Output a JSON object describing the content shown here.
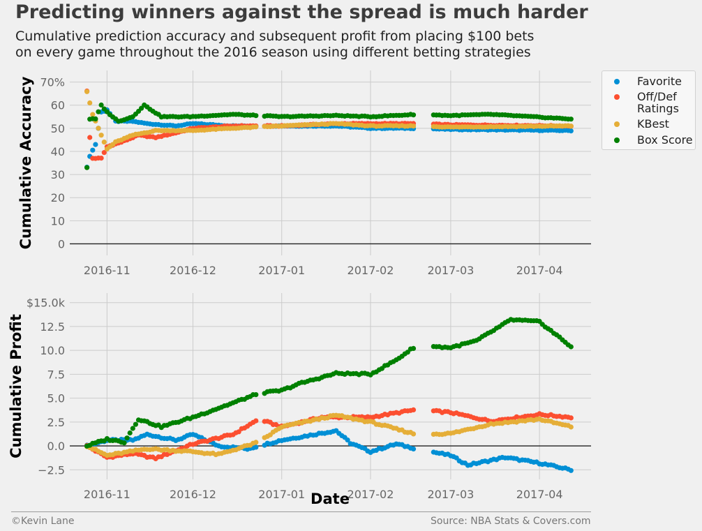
{
  "title": "Predicting winners against the spread is much harder",
  "subtitle_line1": "Cumulative prediction accuracy and subsequent profit from placing $100 bets",
  "subtitle_line2": "on every game throughout the 2016 season using different betting strategies",
  "footer": {
    "credit": "©Kevin Lane",
    "source": "Source: NBA Stats & Covers.com"
  },
  "colors": {
    "Favorite": "#008fd5",
    "Off/Def Ratings": "#fc4f30",
    "KBest": "#e5ae38",
    "Box Score": "#008000",
    "background": "#f0f0f0",
    "grid": "#cbcbcb"
  },
  "legend": [
    {
      "label": "Favorite",
      "color": "#008fd5"
    },
    {
      "label": "Off/Def\nRatings",
      "color": "#fc4f30"
    },
    {
      "label": "KBest",
      "color": "#e5ae38"
    },
    {
      "label": "Box Score",
      "color": "#008000"
    }
  ],
  "chart_data": [
    {
      "type": "scatter",
      "ylabel": "Cumulative Accuracy",
      "xlabel": "",
      "x_range": [
        "2016-10-19",
        "2017-04-19"
      ],
      "ylim": [
        -5,
        75
      ],
      "yticks": [
        0,
        10,
        20,
        30,
        40,
        50,
        60,
        70
      ],
      "ytick_labels": [
        "0",
        "10",
        "20",
        "30",
        "40",
        "50",
        "60",
        "70%"
      ],
      "xticks": [
        "2016-11-01",
        "2016-12-01",
        "2017-01-01",
        "2017-02-01",
        "2017-03-01",
        "2017-04-01"
      ],
      "xtick_labels": [
        "2016-11",
        "2016-12",
        "2017-01",
        "2017-02",
        "2017-03",
        "2017-04"
      ],
      "gaps": [
        [
          "2017-02-17",
          "2017-02-22"
        ],
        [
          "2016-12-24",
          "2016-12-25"
        ]
      ],
      "grid": true,
      "season_start": "2016-10-25",
      "season_end": "2017-04-12",
      "series": [
        {
          "name": "Favorite",
          "anchors": [
            [
              "2016-10-25",
              33
            ],
            [
              "2016-10-26",
              38
            ],
            [
              "2016-10-28",
              43
            ],
            [
              "2016-10-30",
              57
            ],
            [
              "2016-11-01",
              58
            ],
            [
              "2016-11-04",
              53
            ],
            [
              "2016-11-10",
              53
            ],
            [
              "2016-11-15",
              52
            ],
            [
              "2016-11-25",
              51
            ],
            [
              "2016-12-01",
              52
            ],
            [
              "2016-12-15",
              51
            ],
            [
              "2017-01-01",
              51
            ],
            [
              "2017-01-20",
              51
            ],
            [
              "2017-02-01",
              50
            ],
            [
              "2017-02-17",
              50
            ],
            [
              "2017-03-01",
              49.5
            ],
            [
              "2017-04-12",
              49
            ]
          ]
        },
        {
          "name": "Off/Def Ratings",
          "anchors": [
            [
              "2016-10-25",
              66
            ],
            [
              "2016-10-26",
              46
            ],
            [
              "2016-10-27",
              37
            ],
            [
              "2016-10-30",
              37
            ],
            [
              "2016-11-01",
              42
            ],
            [
              "2016-11-06",
              44
            ],
            [
              "2016-11-12",
              47
            ],
            [
              "2016-11-18",
              46
            ],
            [
              "2016-11-25",
              48
            ],
            [
              "2016-12-01",
              50
            ],
            [
              "2016-12-15",
              51
            ],
            [
              "2017-01-01",
              51
            ],
            [
              "2017-01-20",
              52
            ],
            [
              "2017-02-01",
              52
            ],
            [
              "2017-02-17",
              52
            ],
            [
              "2017-03-01",
              51.5
            ],
            [
              "2017-04-12",
              51
            ]
          ]
        },
        {
          "name": "KBest",
          "anchors": [
            [
              "2016-10-25",
              66
            ],
            [
              "2016-10-27",
              56
            ],
            [
              "2016-10-29",
              50
            ],
            [
              "2016-11-01",
              41
            ],
            [
              "2016-11-04",
              44
            ],
            [
              "2016-11-10",
              47
            ],
            [
              "2016-11-18",
              49
            ],
            [
              "2016-11-25",
              49
            ],
            [
              "2016-12-01",
              49
            ],
            [
              "2016-12-15",
              50
            ],
            [
              "2017-01-01",
              51
            ],
            [
              "2017-01-20",
              52
            ],
            [
              "2017-02-01",
              51
            ],
            [
              "2017-02-17",
              51
            ],
            [
              "2017-03-01",
              50.5
            ],
            [
              "2017-04-12",
              51
            ]
          ]
        },
        {
          "name": "Box Score",
          "anchors": [
            [
              "2016-10-25",
              33
            ],
            [
              "2016-10-26",
              54
            ],
            [
              "2016-10-28",
              54
            ],
            [
              "2016-10-30",
              60
            ],
            [
              "2016-11-01",
              57
            ],
            [
              "2016-11-05",
              53
            ],
            [
              "2016-11-10",
              55
            ],
            [
              "2016-11-14",
              60
            ],
            [
              "2016-11-20",
              55
            ],
            [
              "2016-11-30",
              55
            ],
            [
              "2016-12-15",
              56
            ],
            [
              "2017-01-01",
              55
            ],
            [
              "2017-01-20",
              55.5
            ],
            [
              "2017-02-01",
              55
            ],
            [
              "2017-02-17",
              56
            ],
            [
              "2017-03-01",
              55.5
            ],
            [
              "2017-03-15",
              56
            ],
            [
              "2017-04-12",
              54
            ]
          ]
        }
      ]
    },
    {
      "type": "scatter",
      "ylabel": "Cumulative Profit",
      "xlabel": "Date",
      "x_range": [
        "2016-10-19",
        "2017-04-19"
      ],
      "ylim": [
        -3.5,
        16
      ],
      "yticks": [
        -2.5,
        0,
        2.5,
        5,
        7.5,
        10,
        12.5,
        15
      ],
      "ytick_labels": [
        "−2.5",
        "0.0",
        "2.5",
        "5.0",
        "7.5",
        "10.0",
        "12.5",
        "$15.0k"
      ],
      "xticks": [
        "2016-11-01",
        "2016-12-01",
        "2017-01-01",
        "2017-02-01",
        "2017-03-01",
        "2017-04-01"
      ],
      "xtick_labels": [
        "2016-11",
        "2016-12",
        "2017-01",
        "2017-02",
        "2017-03",
        "2017-04"
      ],
      "gaps": [
        [
          "2017-02-17",
          "2017-02-22"
        ],
        [
          "2016-12-24",
          "2016-12-25"
        ]
      ],
      "grid": true,
      "season_start": "2016-10-25",
      "season_end": "2017-04-12",
      "series": [
        {
          "name": "Favorite",
          "anchors": [
            [
              "2016-10-25",
              0
            ],
            [
              "2016-11-01",
              0.6
            ],
            [
              "2016-11-10",
              0.6
            ],
            [
              "2016-11-15",
              1.2
            ],
            [
              "2016-11-25",
              0.6
            ],
            [
              "2016-12-01",
              1.2
            ],
            [
              "2016-12-10",
              0.0
            ],
            [
              "2016-12-20",
              -0.3
            ],
            [
              "2017-01-01",
              0.6
            ],
            [
              "2017-01-20",
              1.6
            ],
            [
              "2017-01-25",
              0.3
            ],
            [
              "2017-02-01",
              -0.6
            ],
            [
              "2017-02-10",
              0.2
            ],
            [
              "2017-02-17",
              -0.3
            ],
            [
              "2017-03-01",
              -1.0
            ],
            [
              "2017-03-07",
              -2.0
            ],
            [
              "2017-03-20",
              -1.2
            ],
            [
              "2017-04-01",
              -1.8
            ],
            [
              "2017-04-12",
              -2.5
            ]
          ]
        },
        {
          "name": "Off/Def Ratings",
          "anchors": [
            [
              "2016-10-25",
              0
            ],
            [
              "2016-11-01",
              -1.2
            ],
            [
              "2016-11-10",
              -0.8
            ],
            [
              "2016-11-18",
              -1.3
            ],
            [
              "2016-11-25",
              -0.5
            ],
            [
              "2016-12-01",
              0.2
            ],
            [
              "2016-12-15",
              1.2
            ],
            [
              "2016-12-24",
              2.8
            ],
            [
              "2017-01-01",
              2.0
            ],
            [
              "2017-01-15",
              3.0
            ],
            [
              "2017-02-01",
              3.0
            ],
            [
              "2017-02-17",
              3.8
            ],
            [
              "2017-03-01",
              3.5
            ],
            [
              "2017-03-15",
              2.6
            ],
            [
              "2017-04-01",
              3.3
            ],
            [
              "2017-04-12",
              3.0
            ]
          ]
        },
        {
          "name": "KBest",
          "anchors": [
            [
              "2016-10-25",
              0
            ],
            [
              "2016-11-01",
              -1.0
            ],
            [
              "2016-11-15",
              -0.3
            ],
            [
              "2016-12-01",
              -0.6
            ],
            [
              "2016-12-10",
              -0.9
            ],
            [
              "2016-12-24",
              0.4
            ],
            [
              "2017-01-01",
              2.0
            ],
            [
              "2017-01-20",
              3.2
            ],
            [
              "2017-02-01",
              2.5
            ],
            [
              "2017-02-17",
              1.2
            ],
            [
              "2017-03-01",
              1.3
            ],
            [
              "2017-03-15",
              2.3
            ],
            [
              "2017-04-01",
              2.8
            ],
            [
              "2017-04-12",
              2.0
            ]
          ]
        },
        {
          "name": "Box Score",
          "anchors": [
            [
              "2016-10-25",
              0
            ],
            [
              "2016-11-01",
              0.7
            ],
            [
              "2016-11-07",
              0.4
            ],
            [
              "2016-11-12",
              2.8
            ],
            [
              "2016-11-20",
              2.0
            ],
            [
              "2016-12-01",
              3.0
            ],
            [
              "2016-12-15",
              4.5
            ],
            [
              "2016-12-24",
              5.5
            ],
            [
              "2017-01-01",
              5.8
            ],
            [
              "2017-01-07",
              6.5
            ],
            [
              "2017-01-20",
              7.6
            ],
            [
              "2017-02-01",
              7.5
            ],
            [
              "2017-02-10",
              9.0
            ],
            [
              "2017-02-17",
              10.5
            ],
            [
              "2017-03-01",
              10.3
            ],
            [
              "2017-03-10",
              11.0
            ],
            [
              "2017-03-22",
              13.2
            ],
            [
              "2017-04-01",
              13.0
            ],
            [
              "2017-04-12",
              10.4
            ]
          ]
        }
      ]
    }
  ]
}
